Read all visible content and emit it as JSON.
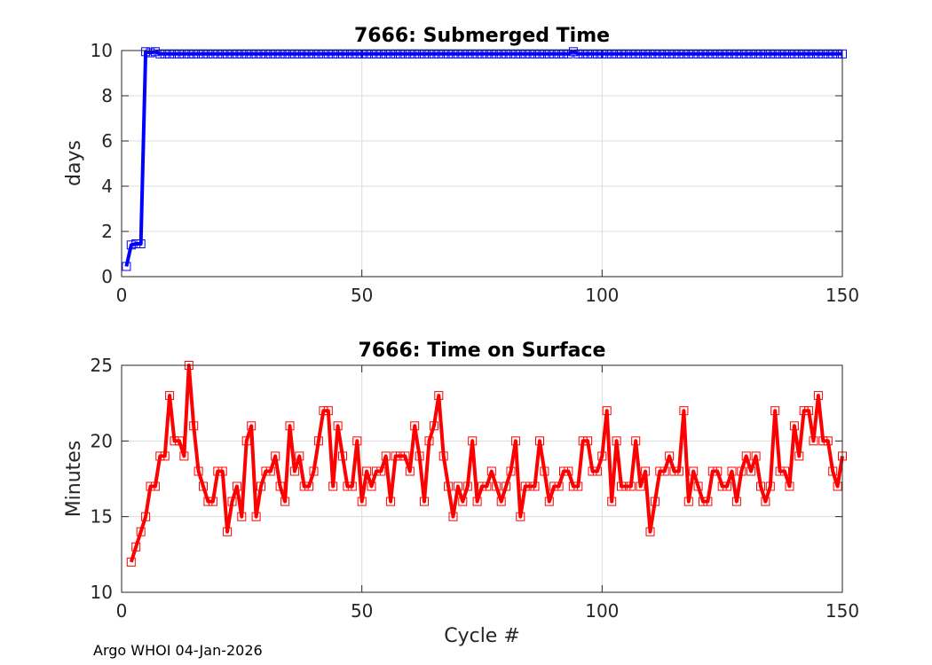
{
  "chart_data": [
    {
      "type": "line",
      "title": "7666: Submerged Time",
      "xlabel": "",
      "ylabel": "days",
      "xlim": [
        0,
        150
      ],
      "ylim": [
        0,
        10
      ],
      "xticks": [
        "0",
        "50",
        "100",
        "150"
      ],
      "yticks": [
        "0",
        "2",
        "4",
        "6",
        "8",
        "10"
      ],
      "grid": true,
      "line_color": "#0000ff",
      "marker": "square",
      "series": [
        {
          "x": [
            1,
            2,
            3,
            4,
            5,
            6,
            7,
            8,
            9,
            10,
            11,
            12,
            13,
            14,
            15,
            16,
            17,
            18,
            19,
            20,
            21,
            22,
            23,
            24,
            25,
            26,
            27,
            28,
            29,
            30,
            31,
            32,
            33,
            34,
            35,
            36,
            37,
            38,
            39,
            40,
            41,
            42,
            43,
            44,
            45,
            46,
            47,
            48,
            49,
            50,
            51,
            52,
            53,
            54,
            55,
            56,
            57,
            58,
            59,
            60,
            61,
            62,
            63,
            64,
            65,
            66,
            67,
            68,
            69,
            70,
            71,
            72,
            73,
            74,
            75,
            76,
            77,
            78,
            79,
            80,
            81,
            82,
            83,
            84,
            85,
            86,
            87,
            88,
            89,
            90,
            91,
            92,
            93,
            94,
            95,
            96,
            97,
            98,
            99,
            100,
            101,
            102,
            103,
            104,
            105,
            106,
            107,
            108,
            109,
            110,
            111,
            112,
            113,
            114,
            115,
            116,
            117,
            118,
            119,
            120,
            121,
            122,
            123,
            124,
            125,
            126,
            127,
            128,
            129,
            130,
            131,
            132,
            133,
            134,
            135,
            136,
            137,
            138,
            139,
            140,
            141,
            142,
            143,
            144,
            145,
            146,
            147,
            148,
            149,
            150
          ],
          "y": [
            0.45,
            1.4,
            1.45,
            1.45,
            9.95,
            9.9,
            9.95,
            9.85,
            9.85,
            9.85,
            9.85,
            9.85,
            9.85,
            9.85,
            9.85,
            9.85,
            9.85,
            9.85,
            9.85,
            9.85,
            9.85,
            9.85,
            9.85,
            9.85,
            9.85,
            9.85,
            9.85,
            9.85,
            9.85,
            9.85,
            9.85,
            9.85,
            9.85,
            9.85,
            9.85,
            9.85,
            9.85,
            9.85,
            9.85,
            9.85,
            9.85,
            9.85,
            9.85,
            9.85,
            9.85,
            9.85,
            9.85,
            9.85,
            9.85,
            9.85,
            9.85,
            9.85,
            9.85,
            9.85,
            9.85,
            9.85,
            9.85,
            9.85,
            9.85,
            9.85,
            9.85,
            9.85,
            9.85,
            9.85,
            9.85,
            9.85,
            9.85,
            9.85,
            9.85,
            9.85,
            9.85,
            9.85,
            9.85,
            9.85,
            9.85,
            9.85,
            9.85,
            9.85,
            9.85,
            9.85,
            9.85,
            9.85,
            9.85,
            9.85,
            9.85,
            9.85,
            9.85,
            9.85,
            9.85,
            9.85,
            9.85,
            9.85,
            9.85,
            9.95,
            9.85,
            9.85,
            9.85,
            9.85,
            9.85,
            9.85,
            9.85,
            9.85,
            9.85,
            9.85,
            9.85,
            9.85,
            9.85,
            9.85,
            9.85,
            9.85,
            9.85,
            9.85,
            9.85,
            9.85,
            9.85,
            9.85,
            9.85,
            9.85,
            9.85,
            9.85,
            9.85,
            9.85,
            9.85,
            9.85,
            9.85,
            9.85,
            9.85,
            9.85,
            9.85,
            9.85,
            9.85,
            9.85,
            9.85,
            9.85,
            9.85,
            9.85,
            9.85,
            9.85,
            9.85,
            9.85,
            9.85,
            9.85,
            9.85,
            9.85,
            9.85,
            9.85,
            9.85,
            9.85,
            9.85,
            9.85
          ]
        }
      ]
    },
    {
      "type": "line",
      "title": "7666: Time on Surface",
      "xlabel": "Cycle #",
      "ylabel": "Minutes",
      "xlim": [
        0,
        150
      ],
      "ylim": [
        10,
        25
      ],
      "xticks": [
        "0",
        "50",
        "100",
        "150"
      ],
      "yticks": [
        "10",
        "15",
        "20",
        "25"
      ],
      "grid": true,
      "line_color": "#ff0000",
      "marker": "square",
      "series": [
        {
          "x": [
            2,
            3,
            4,
            5,
            6,
            7,
            8,
            9,
            10,
            11,
            12,
            13,
            14,
            15,
            16,
            17,
            18,
            19,
            20,
            21,
            22,
            23,
            24,
            25,
            26,
            27,
            28,
            29,
            30,
            31,
            32,
            33,
            34,
            35,
            36,
            37,
            38,
            39,
            40,
            41,
            42,
            43,
            44,
            45,
            46,
            47,
            48,
            49,
            50,
            51,
            52,
            53,
            54,
            55,
            56,
            57,
            58,
            59,
            60,
            61,
            62,
            63,
            64,
            65,
            66,
            67,
            68,
            69,
            70,
            71,
            72,
            73,
            74,
            75,
            76,
            77,
            78,
            79,
            80,
            81,
            82,
            83,
            84,
            85,
            86,
            87,
            88,
            89,
            90,
            91,
            92,
            93,
            94,
            95,
            96,
            97,
            98,
            99,
            100,
            101,
            102,
            103,
            104,
            105,
            106,
            107,
            108,
            109,
            110,
            111,
            112,
            113,
            114,
            115,
            116,
            117,
            118,
            119,
            120,
            121,
            122,
            123,
            124,
            125,
            126,
            127,
            128,
            129,
            130,
            131,
            132,
            133,
            134,
            135,
            136,
            137,
            138,
            139,
            140,
            141,
            142,
            143,
            144,
            145,
            146,
            147,
            148,
            149,
            150
          ],
          "y": [
            12,
            13,
            14,
            15,
            17,
            17,
            19,
            19,
            23,
            20,
            20,
            19,
            25,
            21,
            18,
            17,
            16,
            16,
            18,
            18,
            14,
            16,
            17,
            15,
            20,
            21,
            15,
            17,
            18,
            18,
            19,
            17,
            16,
            21,
            18,
            19,
            17,
            17,
            18,
            20,
            22,
            22,
            17,
            21,
            19,
            17,
            17,
            20,
            16,
            18,
            17,
            18,
            18,
            19,
            16,
            19,
            19,
            19,
            18,
            21,
            19,
            16,
            20,
            21,
            23,
            19,
            17,
            15,
            17,
            16,
            17,
            20,
            16,
            17,
            17,
            18,
            17,
            16,
            17,
            18,
            20,
            15,
            17,
            17,
            17,
            20,
            18,
            16,
            17,
            17,
            18,
            18,
            17,
            17,
            20,
            20,
            18,
            18,
            19,
            22,
            16,
            20,
            17,
            17,
            17,
            20,
            17,
            18,
            14,
            16,
            18,
            18,
            19,
            18,
            18,
            22,
            16,
            18,
            17,
            16,
            16,
            18,
            18,
            17,
            17,
            18,
            16,
            18,
            19,
            18,
            19,
            17,
            16,
            17,
            22,
            18,
            18,
            17,
            21,
            19,
            22,
            22,
            20,
            23,
            20,
            20,
            18,
            17,
            19
          ]
        }
      ]
    }
  ],
  "footer": "Argo WHOI 04-Jan-2026"
}
